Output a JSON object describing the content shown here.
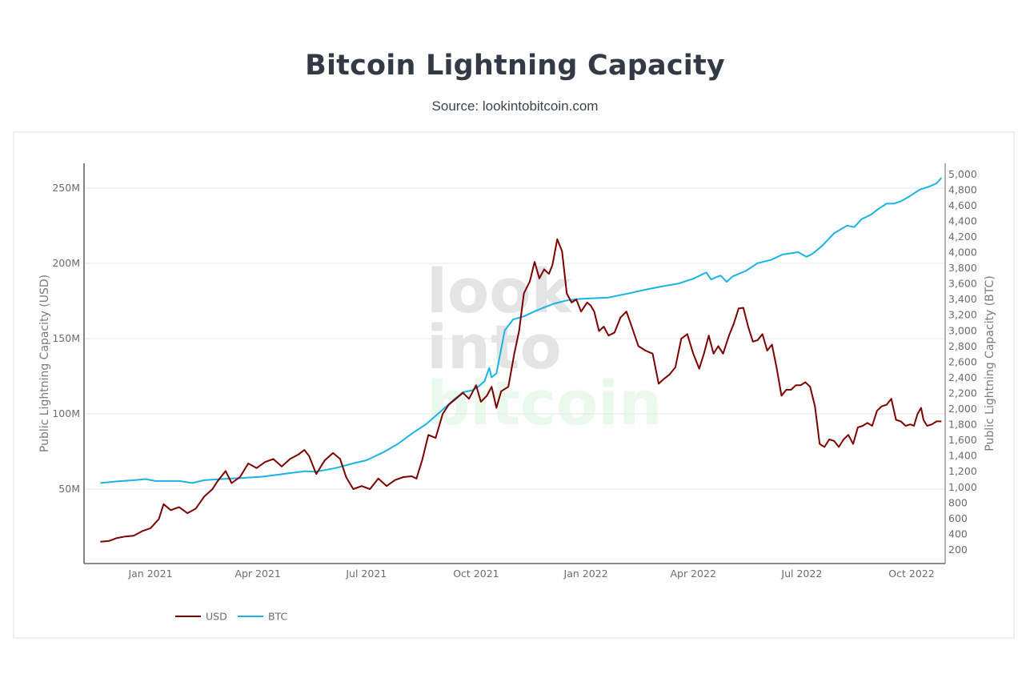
{
  "header": {
    "title": "Bitcoin Lightning Capacity",
    "subtitle": "Source: lookintobitcoin.com"
  },
  "watermark": [
    "look",
    "into",
    "bitcoin"
  ],
  "colors": {
    "usd": "#7d0000",
    "btc": "#19b4e6",
    "grid": "#e6e6e6",
    "axis": "#666666"
  },
  "chart_data": {
    "type": "line",
    "title": "Bitcoin Lightning Capacity",
    "subtitle": "Source: lookintobitcoin.com",
    "xlabel": "",
    "ylabel": "Public Lightning Capacity (USD)",
    "y2label": "Public Lightning Capacity (BTC)",
    "xlim": [
      "2020-11-20",
      "2022-10-10"
    ],
    "ylim": [
      0,
      265000000
    ],
    "y2lim": [
      0,
      5250
    ],
    "grid": true,
    "legend_position": "bottom-left",
    "x_ticks": [
      {
        "date": "2021-01-01",
        "label": "Jan 2021"
      },
      {
        "date": "2021-04-01",
        "label": "Apr 2021"
      },
      {
        "date": "2021-07-01",
        "label": "Jul 2021"
      },
      {
        "date": "2021-10-01",
        "label": "Oct 2021"
      },
      {
        "date": "2022-01-01",
        "label": "Jan 2022"
      },
      {
        "date": "2022-04-01",
        "label": "Apr 2022"
      },
      {
        "date": "2022-07-01",
        "label": "Jul 2022"
      },
      {
        "date": "2022-10-01",
        "label": "Oct 2022"
      }
    ],
    "y_ticks": [
      {
        "value": 50000000,
        "label": "50M"
      },
      {
        "value": 100000000,
        "label": "100M"
      },
      {
        "value": 150000000,
        "label": "150M"
      },
      {
        "value": 200000000,
        "label": "200M"
      },
      {
        "value": 250000000,
        "label": "250M"
      }
    ],
    "y2_ticks": [
      {
        "value": 200,
        "label": "200"
      },
      {
        "value": 400,
        "label": "400"
      },
      {
        "value": 600,
        "label": "600"
      },
      {
        "value": 800,
        "label": "800"
      },
      {
        "value": 1000,
        "label": "1,000"
      },
      {
        "value": 1200,
        "label": "1,200"
      },
      {
        "value": 1400,
        "label": "1,400"
      },
      {
        "value": 1600,
        "label": "1,600"
      },
      {
        "value": 1800,
        "label": "1,800"
      },
      {
        "value": 2000,
        "label": "2,000"
      },
      {
        "value": 2200,
        "label": "2,200"
      },
      {
        "value": 2400,
        "label": "2,400"
      },
      {
        "value": 2600,
        "label": "2,600"
      },
      {
        "value": 2800,
        "label": "2,800"
      },
      {
        "value": 3000,
        "label": "3,000"
      },
      {
        "value": 3200,
        "label": "3,200"
      },
      {
        "value": 3400,
        "label": "3,400"
      },
      {
        "value": 3600,
        "label": "3,600"
      },
      {
        "value": 3800,
        "label": "3,800"
      },
      {
        "value": 4000,
        "label": "4,000"
      },
      {
        "value": 4200,
        "label": "4,200"
      },
      {
        "value": 4400,
        "label": "4,400"
      },
      {
        "value": 4600,
        "label": "4,600"
      },
      {
        "value": 4800,
        "label": "4,800"
      },
      {
        "value": 5000,
        "label": "5,000"
      }
    ],
    "series": [
      {
        "name": "USD",
        "axis": "left",
        "color": "#7d0000",
        "points": [
          [
            "2020-11-20",
            15.0
          ],
          [
            "2020-11-27",
            15.5
          ],
          [
            "2020-12-04",
            17.5
          ],
          [
            "2020-12-11",
            18.5
          ],
          [
            "2020-12-18",
            19.0
          ],
          [
            "2020-12-25",
            22.0
          ],
          [
            "2021-01-01",
            24.0
          ],
          [
            "2021-01-08",
            30.0
          ],
          [
            "2021-01-12",
            40.0
          ],
          [
            "2021-01-18",
            36.0
          ],
          [
            "2021-01-25",
            38.0
          ],
          [
            "2021-02-01",
            34.0
          ],
          [
            "2021-02-08",
            37.0
          ],
          [
            "2021-02-15",
            45.0
          ],
          [
            "2021-02-22",
            50.0
          ],
          [
            "2021-02-26",
            55.0
          ],
          [
            "2021-03-05",
            62.0
          ],
          [
            "2021-03-10",
            54.0
          ],
          [
            "2021-03-17",
            58.0
          ],
          [
            "2021-03-24",
            67.0
          ],
          [
            "2021-03-31",
            64.0
          ],
          [
            "2021-04-07",
            68.0
          ],
          [
            "2021-04-14",
            70.0
          ],
          [
            "2021-04-21",
            65.0
          ],
          [
            "2021-04-28",
            70.0
          ],
          [
            "2021-05-05",
            73.0
          ],
          [
            "2021-05-10",
            76.0
          ],
          [
            "2021-05-14",
            72.0
          ],
          [
            "2021-05-20",
            60.0
          ],
          [
            "2021-05-27",
            69.0
          ],
          [
            "2021-06-03",
            74.0
          ],
          [
            "2021-06-09",
            70.0
          ],
          [
            "2021-06-14",
            58.0
          ],
          [
            "2021-06-20",
            50.0
          ],
          [
            "2021-06-27",
            52.0
          ],
          [
            "2021-07-04",
            50.0
          ],
          [
            "2021-07-11",
            57.0
          ],
          [
            "2021-07-18",
            52.0
          ],
          [
            "2021-07-25",
            56.0
          ],
          [
            "2021-08-01",
            58.0
          ],
          [
            "2021-08-08",
            58.5
          ],
          [
            "2021-08-12",
            57.0
          ],
          [
            "2021-08-17",
            70.0
          ],
          [
            "2021-08-22",
            86.0
          ],
          [
            "2021-08-28",
            84.0
          ],
          [
            "2021-09-03",
            100.0
          ],
          [
            "2021-09-08",
            106.0
          ],
          [
            "2021-09-14",
            110.0
          ],
          [
            "2021-09-20",
            114.0
          ],
          [
            "2021-09-25",
            110.0
          ],
          [
            "2021-10-01",
            119.0
          ],
          [
            "2021-10-05",
            108.0
          ],
          [
            "2021-10-10",
            112.0
          ],
          [
            "2021-10-14",
            118.0
          ],
          [
            "2021-10-18",
            104.0
          ],
          [
            "2021-10-22",
            115.0
          ],
          [
            "2021-10-28",
            118.0
          ],
          [
            "2021-11-02",
            140.0
          ],
          [
            "2021-11-06",
            155.0
          ],
          [
            "2021-11-10",
            180.0
          ],
          [
            "2021-11-15",
            188.0
          ],
          [
            "2021-11-19",
            201.0
          ],
          [
            "2021-11-23",
            190.0
          ],
          [
            "2021-11-27",
            196.0
          ],
          [
            "2021-12-01",
            193.0
          ],
          [
            "2021-12-04",
            199.0
          ],
          [
            "2021-12-08",
            216.0
          ],
          [
            "2021-12-12",
            208.0
          ],
          [
            "2021-12-16",
            180.0
          ],
          [
            "2021-12-20",
            174.0
          ],
          [
            "2021-12-24",
            176.0
          ],
          [
            "2021-12-28",
            168.0
          ],
          [
            "2022-01-02",
            174.0
          ],
          [
            "2022-01-05",
            172.0
          ],
          [
            "2022-01-08",
            168.0
          ],
          [
            "2022-01-12",
            155.0
          ],
          [
            "2022-01-16",
            158.0
          ],
          [
            "2022-01-20",
            152.0
          ],
          [
            "2022-01-25",
            154.0
          ],
          [
            "2022-01-30",
            164.0
          ],
          [
            "2022-02-04",
            168.0
          ],
          [
            "2022-02-08",
            159.0
          ],
          [
            "2022-02-14",
            145.0
          ],
          [
            "2022-02-20",
            142.0
          ],
          [
            "2022-02-26",
            140.0
          ],
          [
            "2022-03-03",
            120.0
          ],
          [
            "2022-03-07",
            123.0
          ],
          [
            "2022-03-12",
            126.0
          ],
          [
            "2022-03-17",
            131.0
          ],
          [
            "2022-03-22",
            150.0
          ],
          [
            "2022-03-27",
            153.0
          ],
          [
            "2022-04-01",
            140.0
          ],
          [
            "2022-04-06",
            130.0
          ],
          [
            "2022-04-10",
            140.0
          ],
          [
            "2022-04-14",
            152.0
          ],
          [
            "2022-04-18",
            140.0
          ],
          [
            "2022-04-22",
            145.0
          ],
          [
            "2022-04-26",
            140.0
          ],
          [
            "2022-05-01",
            152.0
          ],
          [
            "2022-05-05",
            160.0
          ],
          [
            "2022-05-09",
            170.0
          ],
          [
            "2022-05-13",
            170.5
          ],
          [
            "2022-05-17",
            158.0
          ],
          [
            "2022-05-21",
            148.0
          ],
          [
            "2022-05-25",
            149.0
          ],
          [
            "2022-05-29",
            153.0
          ],
          [
            "2022-06-02",
            142.0
          ],
          [
            "2022-06-06",
            146.0
          ],
          [
            "2022-06-10",
            130.0
          ],
          [
            "2022-06-14",
            112.0
          ],
          [
            "2022-06-18",
            116.0
          ],
          [
            "2022-06-22",
            116.0
          ],
          [
            "2022-06-26",
            119.0
          ],
          [
            "2022-06-30",
            119.0
          ],
          [
            "2022-07-04",
            121.0
          ],
          [
            "2022-07-08",
            118.0
          ],
          [
            "2022-07-12",
            105.0
          ],
          [
            "2022-07-16",
            80.0
          ],
          [
            "2022-07-20",
            78.0
          ],
          [
            "2022-07-24",
            83.0
          ],
          [
            "2022-07-28",
            82.0
          ],
          [
            "2022-08-01",
            78.0
          ],
          [
            "2022-08-05",
            83.0
          ],
          [
            "2022-08-09",
            86.0
          ],
          [
            "2022-08-13",
            80.0
          ],
          [
            "2022-08-17",
            91.0
          ],
          [
            "2022-08-21",
            92.0
          ],
          [
            "2022-08-25",
            94.0
          ],
          [
            "2022-08-29",
            92.0
          ],
          [
            "2022-09-02",
            102.0
          ],
          [
            "2022-09-06",
            105.0
          ],
          [
            "2022-09-10",
            106.0
          ],
          [
            "2022-09-14",
            110.0
          ],
          [
            "2022-09-18",
            96.0
          ],
          [
            "2022-09-22",
            95.0
          ],
          [
            "2022-09-26",
            92.0
          ],
          [
            "2022-09-30",
            93.0
          ],
          [
            "2022-10-03",
            92.0
          ],
          [
            "2022-10-06",
            100.0
          ],
          [
            "2022-10-09",
            104.0
          ],
          [
            "2022-10-11",
            96.0
          ],
          [
            "2022-10-14",
            92.0
          ],
          [
            "2022-10-18",
            93.0
          ],
          [
            "2022-10-22",
            95.0
          ],
          [
            "2022-10-26",
            95.0
          ]
        ]
      },
      {
        "name": "BTC",
        "axis": "right",
        "color": "#19b4e6",
        "points": [
          [
            "2020-11-20",
            1050
          ],
          [
            "2020-12-04",
            1070
          ],
          [
            "2020-12-18",
            1085
          ],
          [
            "2020-12-28",
            1100
          ],
          [
            "2021-01-05",
            1075
          ],
          [
            "2021-01-25",
            1075
          ],
          [
            "2021-02-05",
            1050
          ],
          [
            "2021-02-15",
            1085
          ],
          [
            "2021-03-01",
            1100
          ],
          [
            "2021-03-20",
            1115
          ],
          [
            "2021-04-05",
            1130
          ],
          [
            "2021-04-25",
            1170
          ],
          [
            "2021-05-10",
            1200
          ],
          [
            "2021-05-20",
            1195
          ],
          [
            "2021-06-05",
            1240
          ],
          [
            "2021-06-20",
            1300
          ],
          [
            "2021-07-01",
            1340
          ],
          [
            "2021-07-15",
            1440
          ],
          [
            "2021-07-28",
            1555
          ],
          [
            "2021-08-08",
            1680
          ],
          [
            "2021-08-20",
            1800
          ],
          [
            "2021-09-01",
            1960
          ],
          [
            "2021-09-12",
            2110
          ],
          [
            "2021-09-20",
            2210
          ],
          [
            "2021-09-28",
            2235
          ],
          [
            "2021-10-02",
            2270
          ],
          [
            "2021-10-08",
            2350
          ],
          [
            "2021-10-12",
            2520
          ],
          [
            "2021-10-14",
            2400
          ],
          [
            "2021-10-18",
            2450
          ],
          [
            "2021-10-25",
            3000
          ],
          [
            "2021-11-01",
            3140
          ],
          [
            "2021-11-10",
            3180
          ],
          [
            "2021-11-20",
            3250
          ],
          [
            "2021-11-28",
            3300
          ],
          [
            "2021-12-05",
            3340
          ],
          [
            "2021-12-15",
            3380
          ],
          [
            "2021-12-25",
            3400
          ],
          [
            "2022-01-05",
            3410
          ],
          [
            "2022-01-20",
            3420
          ],
          [
            "2022-02-05",
            3470
          ],
          [
            "2022-02-20",
            3520
          ],
          [
            "2022-03-05",
            3560
          ],
          [
            "2022-03-20",
            3600
          ],
          [
            "2022-04-01",
            3660
          ],
          [
            "2022-04-12",
            3740
          ],
          [
            "2022-04-16",
            3650
          ],
          [
            "2022-04-20",
            3680
          ],
          [
            "2022-04-24",
            3700
          ],
          [
            "2022-04-29",
            3620
          ],
          [
            "2022-05-04",
            3690
          ],
          [
            "2022-05-15",
            3760
          ],
          [
            "2022-05-25",
            3860
          ],
          [
            "2022-06-05",
            3900
          ],
          [
            "2022-06-15",
            3970
          ],
          [
            "2022-06-28",
            4000
          ],
          [
            "2022-07-05",
            3940
          ],
          [
            "2022-07-10",
            3980
          ],
          [
            "2022-07-18",
            4080
          ],
          [
            "2022-07-28",
            4240
          ],
          [
            "2022-08-08",
            4340
          ],
          [
            "2022-08-14",
            4320
          ],
          [
            "2022-08-20",
            4420
          ],
          [
            "2022-08-28",
            4480
          ],
          [
            "2022-09-03",
            4550
          ],
          [
            "2022-09-10",
            4620
          ],
          [
            "2022-09-16",
            4620
          ],
          [
            "2022-09-22",
            4650
          ],
          [
            "2022-09-30",
            4720
          ],
          [
            "2022-10-08",
            4800
          ],
          [
            "2022-10-16",
            4840
          ],
          [
            "2022-10-22",
            4880
          ],
          [
            "2022-10-26",
            4950
          ]
        ]
      }
    ],
    "units": {
      "USD": "millions of USD",
      "BTC": "BTC"
    }
  },
  "legend": {
    "items": [
      {
        "label": "USD",
        "color": "#7d0000"
      },
      {
        "label": "BTC",
        "color": "#19b4e6"
      }
    ]
  }
}
